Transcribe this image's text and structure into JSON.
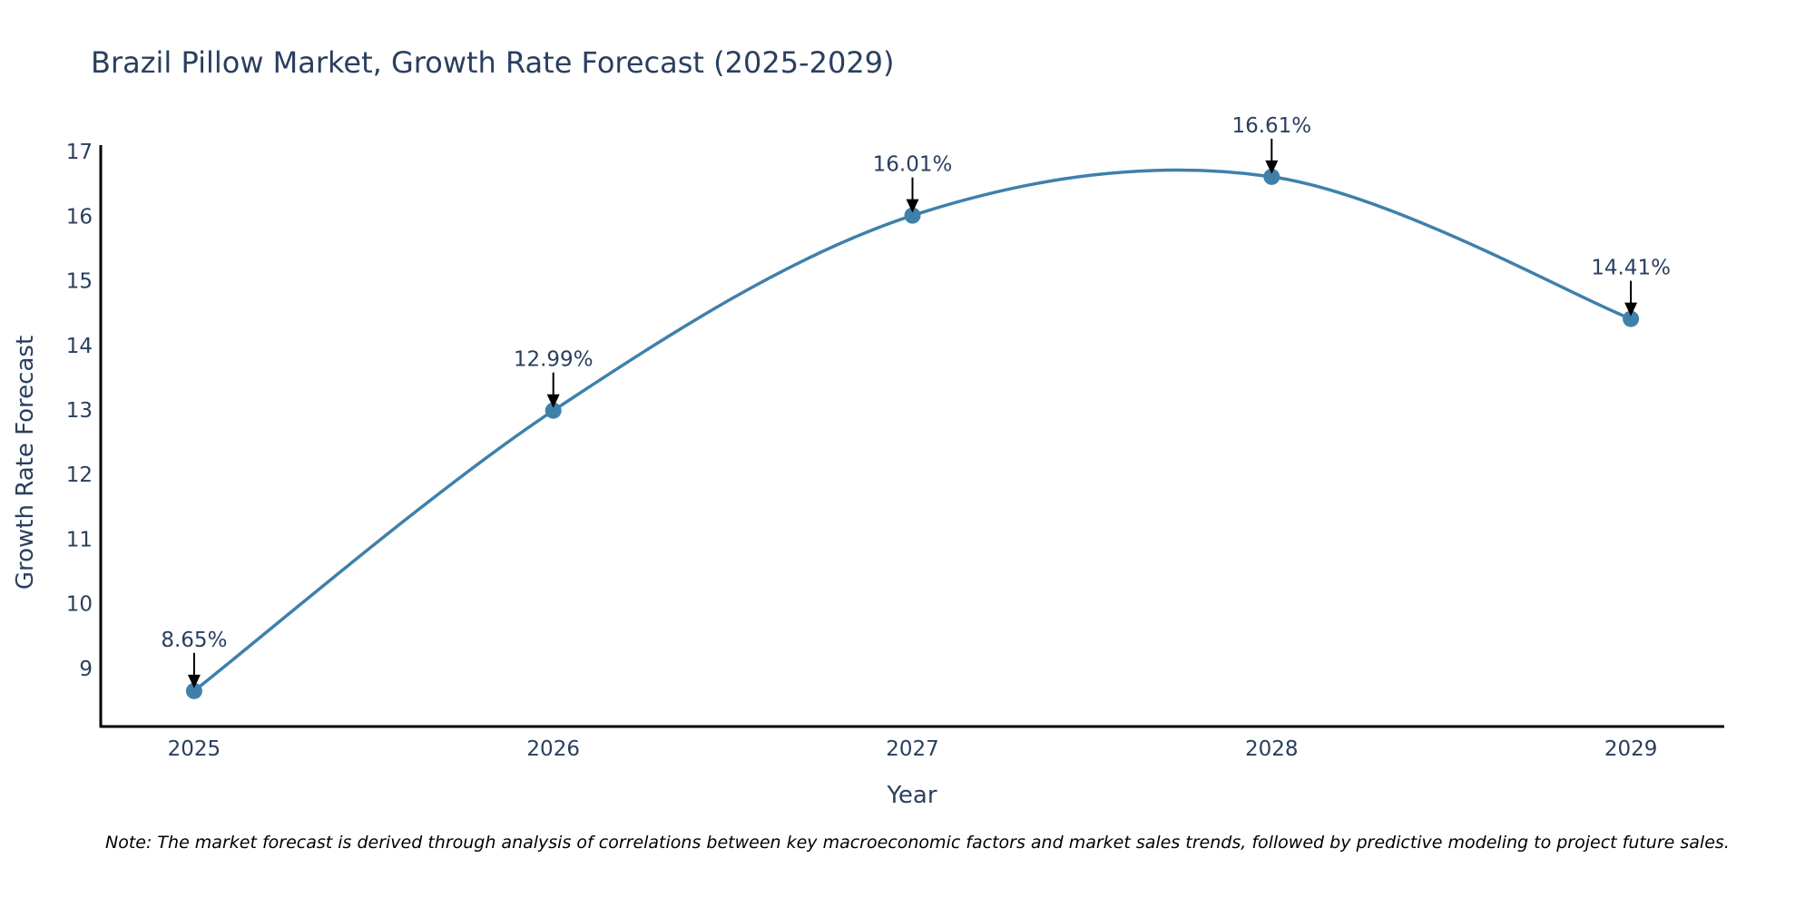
{
  "chart_data": {
    "type": "line",
    "title": "Brazil Pillow Market, Growth Rate Forecast (2025-2029)",
    "xlabel": "Year",
    "ylabel": "Growth Rate Forecast",
    "categories": [
      "2025",
      "2026",
      "2027",
      "2028",
      "2029"
    ],
    "x": [
      2025,
      2026,
      2027,
      2028,
      2029
    ],
    "values": [
      8.65,
      12.99,
      16.01,
      16.61,
      14.41
    ],
    "data_labels": [
      "8.65%",
      "12.99%",
      "16.01%",
      "16.61%",
      "14.41%"
    ],
    "ylim": [
      8.1,
      17.1
    ],
    "xlim": [
      2024.74,
      2029.26
    ],
    "yticks": [
      9,
      10,
      11,
      12,
      13,
      14,
      15,
      16,
      17
    ],
    "grid": false,
    "line_shape": "spline",
    "colors": {
      "line": "#3f80ab",
      "marker": "#3f80ab",
      "axis": "#000000",
      "text": "#2a3f5f",
      "arrow": "#000000"
    }
  },
  "note": "Note: The market forecast is derived through analysis of correlations between key macroeconomic factors and market sales trends, followed by predictive modeling to project future sales."
}
